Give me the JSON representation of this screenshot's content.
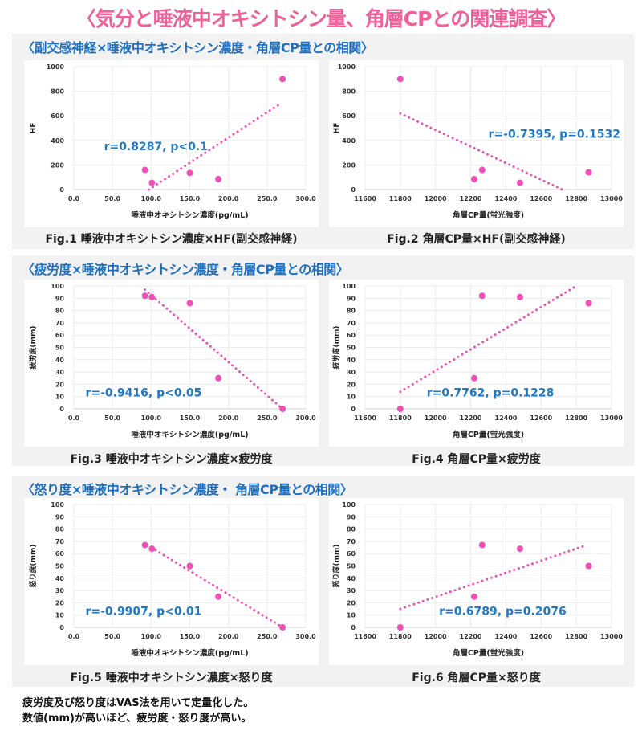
{
  "title": "〈気分と唾液中オキシトシン量、角層CPとの関連調査〉",
  "sections": [
    {
      "heading": "〈副交感神経×唾液中オキシトシン濃度・角層CP量との相関〉"
    },
    {
      "heading": "〈疲労度×唾液中オキシトシン濃度・角層CP量との相関〉"
    },
    {
      "heading": "〈怒り度×唾液中オキシトシン濃度・ 角層CP量との相関〉"
    }
  ],
  "colors": {
    "title": "#f0609a",
    "heading": "#1f6fc0",
    "points": "#ef4fb6",
    "annotation": "#1f78c8"
  },
  "chart_data": [
    {
      "type": "scatter",
      "caption": "Fig.1 唾液中オキシトシン濃度×HF(副交感神経)",
      "xlabel": "唾液中オキシトシン濃度(pg/mL)",
      "ylabel": "HF",
      "xlim": [
        0,
        300
      ],
      "ylim": [
        0,
        1000
      ],
      "xticks": [
        "0.0",
        "50.0",
        "100.0",
        "150.0",
        "200.0",
        "250.0",
        "300.0"
      ],
      "yticks": [
        "0",
        "200",
        "400",
        "600",
        "800",
        "1000"
      ],
      "x": [
        92,
        101,
        150,
        187,
        270
      ],
      "y": [
        160,
        55,
        135,
        85,
        900
      ],
      "trendline": [
        [
          97,
          0
        ],
        [
          265,
          690
        ]
      ],
      "annotation": "r=0.8287, p<0.1",
      "grid": true
    },
    {
      "type": "scatter",
      "caption": "Fig.2 角層CP量×HF(副交感神経)",
      "xlabel": "角層CP量(蛍光強度)",
      "ylabel": "HF",
      "xlim": [
        11600,
        13000
      ],
      "ylim": [
        0,
        1000
      ],
      "xticks": [
        "11600",
        "11800",
        "12000",
        "12200",
        "12400",
        "12600",
        "12800",
        "13000"
      ],
      "yticks": [
        "0",
        "200",
        "400",
        "600",
        "800",
        "1000"
      ],
      "x": [
        11800,
        12220,
        12265,
        12480,
        12870
      ],
      "y": [
        900,
        85,
        160,
        55,
        140
      ],
      "trendline": [
        [
          11800,
          620
        ],
        [
          12720,
          0
        ]
      ],
      "annotation": "r=-0.7395, p=0.1532",
      "grid": true
    },
    {
      "type": "scatter",
      "caption": "Fig.3 唾液中オキシトシン濃度×疲労度",
      "xlabel": "唾液中オキシトシン濃度(pg/mL)",
      "ylabel": "疲労度(mm)",
      "xlim": [
        0,
        300
      ],
      "ylim": [
        0,
        100
      ],
      "xticks": [
        "0.0",
        "50.0",
        "100.0",
        "150.0",
        "200.0",
        "250.0",
        "300.0"
      ],
      "yticks": [
        "0",
        "10",
        "20",
        "30",
        "40",
        "50",
        "60",
        "70",
        "80",
        "90",
        "100"
      ],
      "x": [
        92,
        101,
        150,
        187,
        270
      ],
      "y": [
        92,
        91,
        86,
        25,
        0
      ],
      "trendline": [
        [
          92,
          97
        ],
        [
          270,
          0
        ]
      ],
      "annotation": "r=-0.9416, p<0.05",
      "grid": true
    },
    {
      "type": "scatter",
      "caption": "Fig.4 角層CP量×疲労度",
      "xlabel": "角層CP量(蛍光強度)",
      "ylabel": "疲労度(mm)",
      "xlim": [
        11600,
        13000
      ],
      "ylim": [
        0,
        100
      ],
      "xticks": [
        "11600",
        "11800",
        "12000",
        "12200",
        "12400",
        "12600",
        "12800",
        "13000"
      ],
      "yticks": [
        "0",
        "10",
        "20",
        "30",
        "40",
        "50",
        "60",
        "70",
        "80",
        "90",
        "100"
      ],
      "x": [
        11800,
        12220,
        12265,
        12480,
        12870
      ],
      "y": [
        0,
        25,
        92,
        91,
        86
      ],
      "trendline": [
        [
          11800,
          14
        ],
        [
          12800,
          100
        ]
      ],
      "annotation": "r=0.7762, p=0.1228",
      "grid": true
    },
    {
      "type": "scatter",
      "caption": "Fig.5 唾液中オキシトシン濃度×怒り度",
      "xlabel": "唾液中オキシトシン濃度(pg/mL)",
      "ylabel": "怒り度(mm)",
      "xlim": [
        0,
        300
      ],
      "ylim": [
        0,
        100
      ],
      "xticks": [
        "0.0",
        "50.0",
        "100.0",
        "150.0",
        "200.0",
        "250.0",
        "300.0"
      ],
      "yticks": [
        "0",
        "10",
        "20",
        "30",
        "40",
        "50",
        "60",
        "70",
        "80",
        "90",
        "100"
      ],
      "x": [
        92,
        101,
        150,
        187,
        270
      ],
      "y": [
        67,
        64,
        50,
        25,
        0
      ],
      "trendline": [
        [
          95,
          67
        ],
        [
          270,
          0
        ]
      ],
      "annotation": "r=-0.9907, p<0.01",
      "grid": true
    },
    {
      "type": "scatter",
      "caption": "Fig.6 角層CP量×怒り度",
      "xlabel": "角層CP量(蛍光強度)",
      "ylabel": "怒り度(mm)",
      "xlim": [
        11600,
        13000
      ],
      "ylim": [
        0,
        100
      ],
      "xticks": [
        "11600",
        "11800",
        "12000",
        "12200",
        "12400",
        "12600",
        "12800",
        "13000"
      ],
      "yticks": [
        "0",
        "10",
        "20",
        "30",
        "40",
        "50",
        "60",
        "70",
        "80",
        "90",
        "100"
      ],
      "x": [
        11800,
        12220,
        12265,
        12480,
        12870
      ],
      "y": [
        0,
        25,
        67,
        64,
        50
      ],
      "trendline": [
        [
          11800,
          15
        ],
        [
          12860,
          67
        ]
      ],
      "annotation": "r=0.6789, p=0.2076",
      "grid": true
    }
  ],
  "footer": [
    "疲労度及び怒り度はVAS法を用いて定量化した。",
    "数値(mm)が高いほど、疲労度・怒り度が高い。"
  ]
}
